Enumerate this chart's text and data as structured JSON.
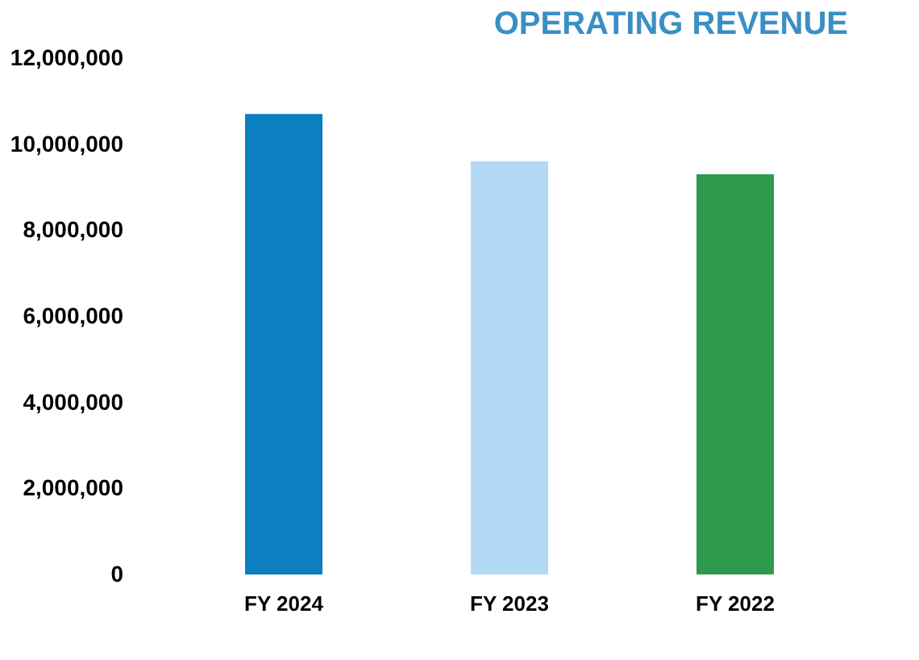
{
  "chart_data": {
    "type": "bar",
    "title": "OPERATING REVENUE",
    "categories": [
      "FY 2024",
      "FY 2023",
      "FY 2022"
    ],
    "values": [
      10700000,
      9600000,
      9300000
    ],
    "colors": [
      "#0b7fbf",
      "#b3daf5",
      "#2e9a4e"
    ],
    "ylim": [
      0,
      12000000
    ],
    "yticks": [
      0,
      {
        "value": 2000000,
        "label": "2,000,000"
      },
      {
        "value": 4000000,
        "label": "4,000,000"
      },
      {
        "value": 6000000,
        "label": "6,000,000"
      },
      {
        "value": 8000000,
        "label": "8,000,000"
      },
      {
        "value": 10000000,
        "label": "10,000,000"
      },
      {
        "value": 12000000,
        "label": "12,000,000"
      }
    ],
    "grid": false
  }
}
